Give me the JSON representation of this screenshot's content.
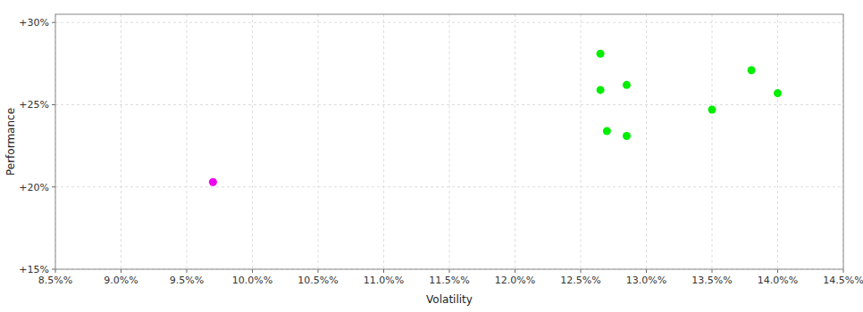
{
  "chart_data": {
    "type": "scatter",
    "xlabel": "Volatility",
    "ylabel": "Performance",
    "xlim": [
      0.085,
      0.145
    ],
    "ylim": [
      0.15,
      0.305
    ],
    "xticks": [
      {
        "value": 0.085,
        "label": "8.5%%"
      },
      {
        "value": 0.09,
        "label": "9.0%%"
      },
      {
        "value": 0.095,
        "label": "9.5%%"
      },
      {
        "value": 0.1,
        "label": "10.0%%"
      },
      {
        "value": 0.105,
        "label": "10.5%%"
      },
      {
        "value": 0.11,
        "label": "11.0%%"
      },
      {
        "value": 0.115,
        "label": "11.5%%"
      },
      {
        "value": 0.12,
        "label": "12.0%%"
      },
      {
        "value": 0.125,
        "label": "12.5%%"
      },
      {
        "value": 0.13,
        "label": "13.0%%"
      },
      {
        "value": 0.135,
        "label": "13.5%%"
      },
      {
        "value": 0.14,
        "label": "14.0%%"
      },
      {
        "value": 0.145,
        "label": "14.5%%"
      }
    ],
    "yticks": [
      {
        "value": 0.15,
        "label": "+15%"
      },
      {
        "value": 0.2,
        "label": "+20%"
      },
      {
        "value": 0.25,
        "label": "+25%"
      },
      {
        "value": 0.3,
        "label": "+30%"
      }
    ],
    "grid": true,
    "series": [
      {
        "color": "#00ee00",
        "x": [
          0.1265,
          0.1265,
          0.1285,
          0.127,
          0.1285,
          0.135,
          0.138,
          0.14
        ],
        "values": [
          0.281,
          0.259,
          0.262,
          0.234,
          0.231,
          0.247,
          0.271,
          0.257
        ]
      },
      {
        "color": "#ee00ee",
        "x": [
          0.097
        ],
        "values": [
          0.203
        ]
      }
    ]
  }
}
